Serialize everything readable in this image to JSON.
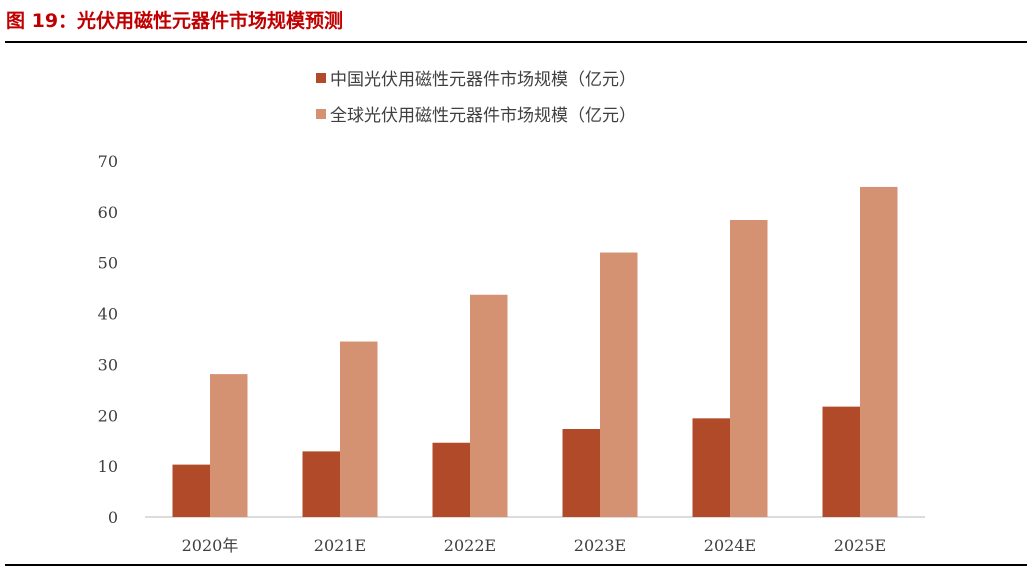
{
  "title": "图 19：光伏用磁性元器件市场规模预测",
  "chart_data": {
    "type": "bar",
    "categories": [
      "2020年",
      "2021E",
      "2022E",
      "2023E",
      "2024E",
      "2025E"
    ],
    "series": [
      {
        "name": "中国光伏用磁性元器件市场规模（亿元）",
        "color": "#b04a28",
        "values": [
          10.3,
          12.9,
          14.6,
          17.3,
          19.4,
          21.7
        ]
      },
      {
        "name": "全球光伏用磁性元器件市场规模（亿元）",
        "color": "#d49273",
        "values": [
          28.1,
          34.5,
          43.7,
          52.0,
          58.4,
          64.9
        ]
      }
    ],
    "ylim": [
      0,
      70
    ],
    "yticks": [
      0,
      10,
      20,
      30,
      40,
      50,
      60,
      70
    ],
    "grid": false,
    "legend": "top"
  }
}
